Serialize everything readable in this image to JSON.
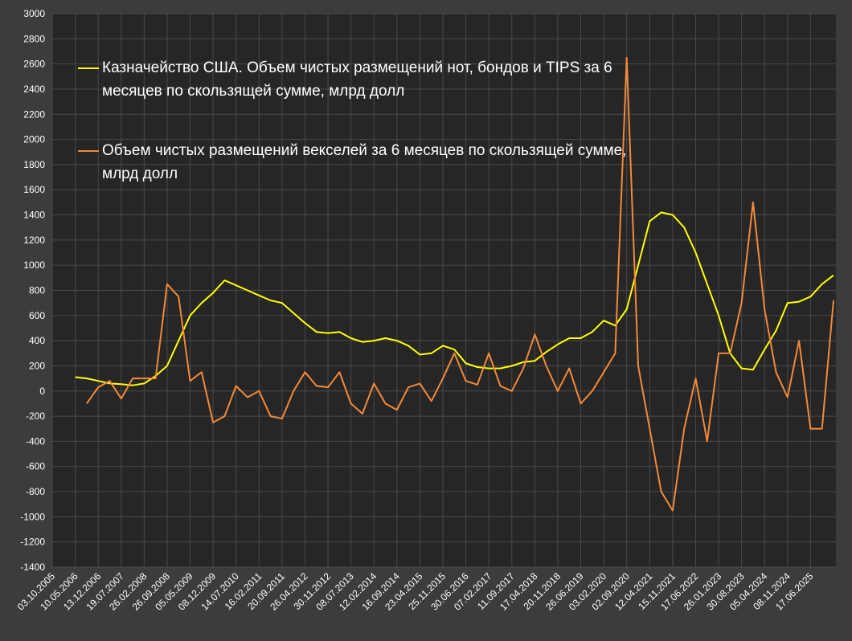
{
  "chart_data": {
    "type": "line",
    "categories": [
      "03.10.2005",
      null,
      "10.05.2006",
      null,
      "13.12.2006",
      null,
      "19.07.2007",
      null,
      "26.02.2008",
      null,
      "26.09.2008",
      null,
      "05.05.2009",
      null,
      "08.12.2009",
      null,
      "14.07.2010",
      null,
      "16.02.2011",
      null,
      "20.09.2011",
      null,
      "26.04.2012",
      null,
      "30.11.2012",
      null,
      "08.07.2013",
      null,
      "12.02.2014",
      null,
      "16.09.2014",
      null,
      "23.04.2015",
      null,
      "25.11.2015",
      null,
      "30.06.2016",
      null,
      "07.02.2017",
      null,
      "11.09.2017",
      null,
      "17.04.2018",
      null,
      "20.11.2018",
      null,
      "26.06.2019",
      null,
      "03.02.2020",
      null,
      "02.09.2020",
      null,
      "12.04.2021",
      null,
      "15.11.2021",
      null,
      "17.06.2022",
      null,
      "26.01.2023",
      null,
      "30.08.2023",
      null,
      "05.04.2024",
      null,
      "08.11.2024",
      null,
      "17.06.2025",
      null,
      null
    ],
    "series": [
      {
        "name": "Казначейство США. Объем чистых размещений нот, бондов и TIPS за 6 месяцев по скользящей сумме, млрд долл",
        "color": "#ffff00",
        "values": [
          null,
          null,
          110,
          100,
          80,
          60,
          55,
          45,
          60,
          120,
          200,
          400,
          600,
          700,
          780,
          880,
          840,
          800,
          760,
          720,
          700,
          620,
          540,
          470,
          460,
          470,
          420,
          390,
          400,
          420,
          400,
          360,
          290,
          300,
          360,
          330,
          220,
          190,
          180,
          180,
          200,
          230,
          240,
          310,
          370,
          420,
          420,
          470,
          560,
          520,
          650,
          1000,
          1350,
          1420,
          1400,
          1300,
          1100,
          850,
          600,
          300,
          180,
          170,
          330,
          480,
          700,
          710,
          750,
          850,
          920
        ]
      },
      {
        "name": "Объем чистых размещений векселей за 6 месяцев по скользящей сумме, млрд долл",
        "color": "#f28a3a",
        "values": [
          null,
          null,
          null,
          -100,
          30,
          80,
          -60,
          100,
          100,
          100,
          850,
          750,
          80,
          150,
          -250,
          -200,
          40,
          -50,
          0,
          -200,
          -220,
          0,
          150,
          40,
          30,
          150,
          -100,
          -180,
          60,
          -100,
          -150,
          30,
          60,
          -80,
          100,
          300,
          80,
          50,
          300,
          40,
          0,
          180,
          450,
          200,
          0,
          180,
          -100,
          0,
          150,
          300,
          2650,
          200,
          -300,
          -800,
          -950,
          -300,
          100,
          -400,
          300,
          300,
          700,
          1500,
          650,
          150,
          -50,
          400,
          -300,
          -300,
          720
        ]
      }
    ],
    "ylim": [
      -1400,
      3000
    ],
    "yticks": [
      -1400,
      -1200,
      -1000,
      -800,
      -600,
      -400,
      -200,
      0,
      200,
      400,
      600,
      800,
      1000,
      1200,
      1400,
      1600,
      1800,
      2000,
      2200,
      2400,
      2600,
      2800,
      3000
    ],
    "grid": true
  }
}
